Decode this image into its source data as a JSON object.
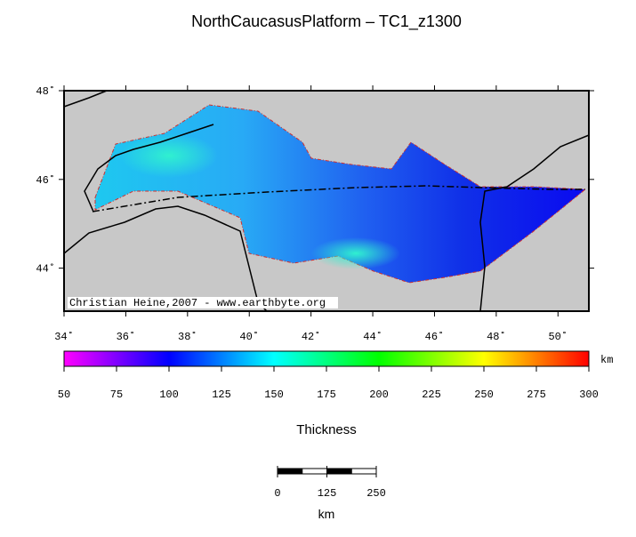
{
  "title": "NorthCaucasusPlatform – TC1_z1300",
  "map": {
    "xlim": [
      34,
      51
    ],
    "ylim": [
      43.03,
      48
    ],
    "xticks": [
      {
        "value": 34,
        "label": "34˚"
      },
      {
        "value": 36,
        "label": "36˚"
      },
      {
        "value": 38,
        "label": "38˚"
      },
      {
        "value": 40,
        "label": "40˚"
      },
      {
        "value": 42,
        "label": "42˚"
      },
      {
        "value": 44,
        "label": "44˚"
      },
      {
        "value": 46,
        "label": "46˚"
      },
      {
        "value": 48,
        "label": "48˚"
      },
      {
        "value": 50,
        "label": "50˚"
      }
    ],
    "yticks": [
      {
        "value": 44,
        "label": "44˚"
      },
      {
        "value": 46,
        "label": "46˚"
      },
      {
        "value": 48,
        "label": "48˚"
      }
    ],
    "credit": "Christian Heine,2007 - www.earthbyte.org"
  },
  "colorbar": {
    "lim": [
      50,
      300
    ],
    "ticks": [
      50,
      75,
      100,
      125,
      150,
      175,
      200,
      225,
      250,
      275,
      300
    ],
    "unit": "km",
    "label": "Thickness"
  },
  "scale_bar": {
    "ticks": [
      0,
      125,
      250
    ],
    "unit": "km"
  }
}
